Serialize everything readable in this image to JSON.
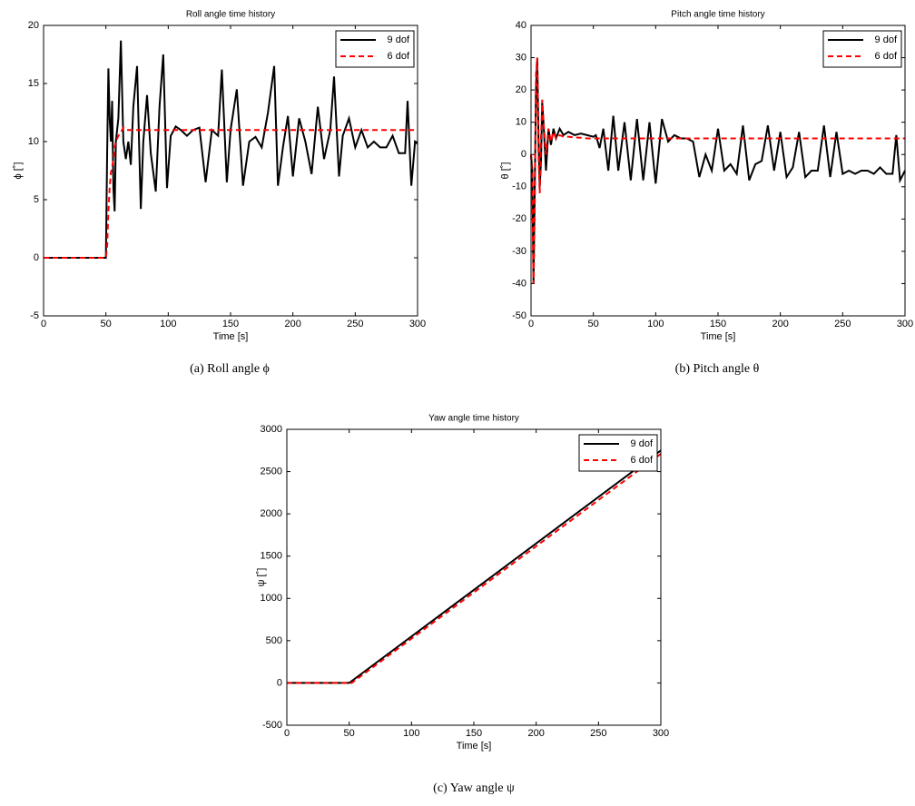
{
  "chart_data": [
    {
      "type": "line",
      "title": "Roll angle time history",
      "xlabel": "Time [s]",
      "ylabel": "ϕ [˚]",
      "caption": "(a)  Roll angle ϕ",
      "x": [
        0,
        50,
        51,
        52,
        53,
        54,
        55,
        56,
        57,
        58,
        60,
        62,
        64,
        66,
        68,
        70,
        72,
        75,
        78,
        80,
        83,
        86,
        90,
        93,
        96,
        99,
        102,
        106,
        110,
        115,
        120,
        125,
        130,
        135,
        140,
        143,
        147,
        150,
        155,
        160,
        165,
        170,
        175,
        180,
        185,
        188,
        192,
        196,
        200,
        205,
        210,
        215,
        220,
        225,
        230,
        233,
        237,
        240,
        245,
        250,
        255,
        260,
        265,
        270,
        275,
        280,
        285,
        290,
        292,
        295,
        298,
        300
      ],
      "series": [
        {
          "name": "9 dof",
          "color": "#000000",
          "linestyle": "solid",
          "values": [
            0,
            0,
            9,
            16.3,
            12,
            10,
            13.5,
            6,
            4,
            10,
            12,
            18.7,
            10,
            8.5,
            10,
            8,
            13,
            16.5,
            4.2,
            10,
            14,
            9,
            5.7,
            13,
            17.5,
            6,
            10.5,
            11.3,
            11,
            10.5,
            11,
            11.2,
            6.5,
            11,
            10.5,
            16.2,
            6.5,
            11,
            14.5,
            6.2,
            10,
            10.4,
            9.5,
            12.5,
            16.5,
            6.2,
            9.5,
            12.2,
            7,
            12,
            10,
            7.2,
            13,
            8.5,
            11,
            15.6,
            7,
            10.5,
            12,
            9.5,
            11,
            9.5,
            10,
            9.5,
            9.5,
            10.5,
            9,
            9,
            13.5,
            6.2,
            10,
            9.8
          ]
        },
        {
          "name": "6 dof",
          "color": "#ff0000",
          "linestyle": "dashed",
          "values": [
            0,
            0,
            1,
            4,
            6,
            7.3,
            7.8,
            8.5,
            9.5,
            10,
            10.5,
            10.8,
            11.2,
            11,
            11,
            11,
            11,
            11,
            11,
            11,
            11,
            11,
            11,
            11,
            11,
            11,
            11,
            11,
            11,
            11,
            11,
            11,
            11,
            11,
            11,
            11,
            11,
            11,
            11,
            11,
            11,
            11,
            11,
            11,
            11,
            11,
            11,
            11,
            11,
            11,
            11,
            11,
            11,
            11,
            11,
            11,
            11,
            11,
            11,
            11,
            11,
            11,
            11,
            11,
            11,
            11,
            11,
            11,
            11,
            11,
            11,
            11
          ]
        }
      ],
      "xlim": [
        0,
        300
      ],
      "xticks": [
        0,
        50,
        100,
        150,
        200,
        250,
        300
      ],
      "ylim": [
        -5,
        20
      ],
      "yticks": [
        -5,
        0,
        5,
        10,
        15,
        20
      ],
      "legend": "upper right",
      "grid": false
    },
    {
      "type": "line",
      "title": "Pitch angle time history",
      "xlabel": "Time [s]",
      "ylabel": "θ [˚]",
      "caption": "(b)  Pitch angle θ",
      "x": [
        0,
        1,
        2,
        3,
        4,
        5,
        6,
        7,
        8,
        9,
        10,
        12,
        14,
        16,
        18,
        20,
        23,
        26,
        30,
        35,
        40,
        45,
        50,
        52,
        55,
        58,
        62,
        66,
        70,
        75,
        80,
        85,
        90,
        95,
        100,
        105,
        110,
        115,
        120,
        125,
        130,
        135,
        140,
        145,
        150,
        155,
        160,
        165,
        170,
        175,
        180,
        185,
        190,
        195,
        200,
        205,
        210,
        215,
        220,
        225,
        230,
        235,
        240,
        245,
        250,
        255,
        260,
        265,
        270,
        275,
        280,
        285,
        290,
        293,
        296,
        300
      ],
      "series": [
        {
          "name": "9 dof",
          "color": "#000000",
          "linestyle": "solid",
          "values": [
            0,
            -5,
            -40,
            -10,
            20,
            30,
            5,
            -10,
            -2,
            16,
            10,
            -5,
            8,
            3,
            8,
            5,
            8,
            6,
            7,
            6,
            6.5,
            6,
            5.5,
            6,
            2,
            8,
            -5,
            12,
            -5,
            10,
            -8,
            11,
            -8,
            10,
            -9,
            11,
            4,
            6,
            5,
            5,
            4,
            -7,
            0,
            -5,
            8,
            -5,
            -3,
            -6,
            9,
            -8,
            -3,
            -2,
            9,
            -5,
            7,
            -7,
            -4,
            7,
            -7,
            -5,
            -5,
            9,
            -7,
            7,
            -6,
            -5,
            -6,
            -5,
            -5,
            -6,
            -4,
            -6,
            -6,
            6,
            -8,
            -5
          ]
        },
        {
          "name": "6 dof",
          "color": "#ff0000",
          "linestyle": "dashed",
          "values": [
            0,
            -10,
            -40,
            -15,
            25,
            30,
            0,
            -12,
            5,
            17,
            10,
            0,
            8,
            4,
            7,
            5,
            6,
            5.5,
            5.5,
            5.3,
            5.2,
            5,
            5,
            5,
            5,
            5,
            5,
            5,
            5,
            5,
            5,
            5,
            5,
            5,
            5,
            5,
            5,
            5,
            5,
            5,
            5,
            5,
            5,
            5,
            5,
            5,
            5,
            5,
            5,
            5,
            5,
            5,
            5,
            5,
            5,
            5,
            5,
            5,
            5,
            5,
            5,
            5,
            5,
            5,
            5,
            5,
            5,
            5,
            5,
            5,
            5,
            5,
            5,
            5,
            5,
            5
          ]
        }
      ],
      "xlim": [
        0,
        300
      ],
      "xticks": [
        0,
        50,
        100,
        150,
        200,
        250,
        300
      ],
      "ylim": [
        -50,
        40
      ],
      "yticks": [
        -50,
        -40,
        -30,
        -20,
        -10,
        0,
        10,
        20,
        30,
        40
      ],
      "legend": "upper right",
      "grid": false
    },
    {
      "type": "line",
      "title": "Yaw angle time history",
      "xlabel": "Time [s]",
      "ylabel": "ψ [˚]",
      "caption": "(c)  Yaw angle ψ",
      "x": [
        0,
        50,
        52,
        300
      ],
      "series": [
        {
          "name": "9 dof",
          "color": "#000000",
          "linestyle": "solid",
          "values": [
            0,
            0,
            22,
            2750
          ]
        },
        {
          "name": "6 dof",
          "color": "#ff0000",
          "linestyle": "dashed",
          "values": [
            0,
            0,
            0,
            2710
          ]
        }
      ],
      "xlim": [
        0,
        300
      ],
      "xticks": [
        0,
        50,
        100,
        150,
        200,
        250,
        300
      ],
      "ylim": [
        -500,
        3000
      ],
      "yticks": [
        -500,
        0,
        500,
        1000,
        1500,
        2000,
        2500,
        3000
      ],
      "legend": "upper right",
      "grid": false
    }
  ]
}
